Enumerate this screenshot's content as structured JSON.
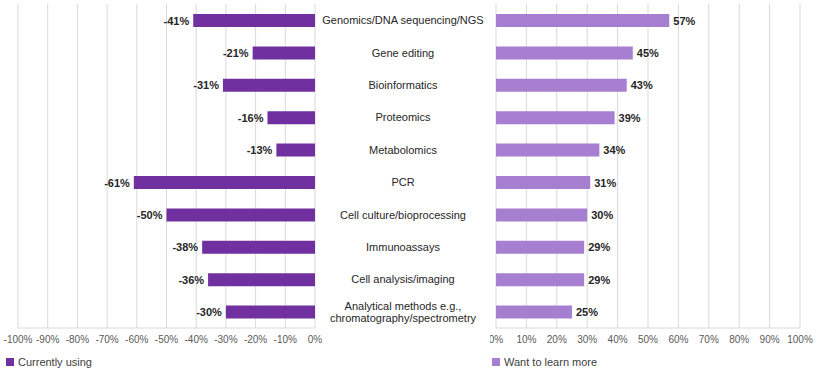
{
  "chart_data": [
    {
      "type": "bar",
      "orientation": "horizontal",
      "categories": [
        "Genomics/DNA sequencing/NGS",
        "Gene editing",
        "Bioinformatics",
        "Proteomics",
        "Metabolomics",
        "PCR",
        "Cell culture/bioprocessing",
        "Immunoassays",
        "Cell analysis/imaging",
        "Analytical methods e.g., chromatography/spectrometry"
      ],
      "series": [
        {
          "name": "Currently using",
          "color": "#7030a0",
          "values": [
            -41,
            -21,
            -31,
            -16,
            -13,
            -61,
            -50,
            -38,
            -36,
            -30
          ],
          "value_labels": [
            "-41%",
            "-21%",
            "-31%",
            "-16%",
            "-13%",
            "-61%",
            "-50%",
            "-38%",
            "-36%",
            "-30%"
          ]
        }
      ],
      "xlim": [
        -100,
        0
      ],
      "xticks": [
        {
          "value": -100,
          "label": "-100%"
        },
        {
          "value": -90,
          "label": "-90%"
        },
        {
          "value": -80,
          "label": "-80%"
        },
        {
          "value": -70,
          "label": "-70%"
        },
        {
          "value": -60,
          "label": "-60%"
        },
        {
          "value": -50,
          "label": "-50%"
        },
        {
          "value": -40,
          "label": "-40%"
        },
        {
          "value": -30,
          "label": "-30%"
        },
        {
          "value": -20,
          "label": "-20%"
        },
        {
          "value": -10,
          "label": "-10%"
        },
        {
          "value": 0,
          "label": "0%"
        }
      ],
      "grid": true,
      "data_labels": true,
      "legend": "bottom"
    },
    {
      "type": "bar",
      "orientation": "horizontal",
      "categories": [
        "Genomics/DNA sequencing/NGS",
        "Gene editing",
        "Bioinformatics",
        "Proteomics",
        "Metabolomics",
        "PCR",
        "Cell culture/bioprocessing",
        "Immunoassays",
        "Cell analysis/imaging",
        "Analytical methods e.g., chromatography/spectrometry"
      ],
      "series": [
        {
          "name": "Want to learn more",
          "color": "#a77fd1",
          "values": [
            57,
            45,
            43,
            39,
            34,
            31,
            30,
            29,
            29,
            25
          ],
          "value_labels": [
            "57%",
            "45%",
            "43%",
            "39%",
            "34%",
            "31%",
            "30%",
            "29%",
            "29%",
            "25%"
          ]
        }
      ],
      "xlim": [
        0,
        100
      ],
      "xticks": [
        {
          "value": 0,
          "label": "0%"
        },
        {
          "value": 10,
          "label": "10%"
        },
        {
          "value": 20,
          "label": "20%"
        },
        {
          "value": 30,
          "label": "30%"
        },
        {
          "value": 40,
          "label": "40%"
        },
        {
          "value": 50,
          "label": "50%"
        },
        {
          "value": 60,
          "label": "60%"
        },
        {
          "value": 70,
          "label": "70%"
        },
        {
          "value": 80,
          "label": "80%"
        },
        {
          "value": 90,
          "label": "90%"
        },
        {
          "value": 100,
          "label": "100%"
        }
      ],
      "grid": true,
      "data_labels": true,
      "legend": "bottom",
      "tick_labels": "x"
    }
  ]
}
